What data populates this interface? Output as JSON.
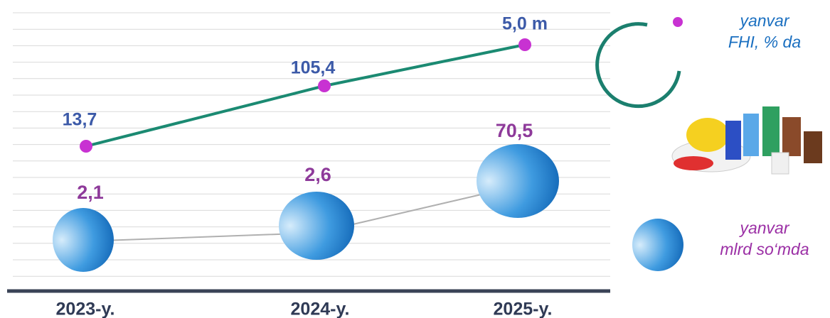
{
  "chart_data": {
    "type": "line",
    "categories": [
      "2023-y.",
      "2024-y.",
      "2025-y."
    ],
    "series": [
      {
        "name": "yanvar\nFHI, % da",
        "type": "line",
        "color": "#1b8a72",
        "marker_color": "#c832d2",
        "label_color": "#3c5aa8",
        "values": [
          13.7,
          105.4,
          5.0
        ],
        "value_labels": [
          "13,7",
          "105,4",
          "5,0 m"
        ]
      },
      {
        "name": "yanvar\nmlrd so‘mda",
        "type": "bubble",
        "color": "#1a6fc0",
        "line_color": "#b0b0b0",
        "label_color": "#8e3a9a",
        "values": [
          2.1,
          2.6,
          70.5
        ],
        "value_labels": [
          "2,1",
          "2,6",
          "70,5"
        ]
      }
    ],
    "grid": true
  }
}
